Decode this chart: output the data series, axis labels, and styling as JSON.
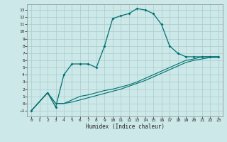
{
  "xlabel": "Humidex (Indice chaleur)",
  "bg_color": "#cce8e8",
  "line_color": "#007070",
  "grid_color": "#aacccc",
  "xlim": [
    -0.5,
    23.5
  ],
  "ylim": [
    -1.8,
    13.8
  ],
  "xticks": [
    0,
    1,
    2,
    3,
    4,
    5,
    6,
    7,
    8,
    9,
    10,
    11,
    12,
    13,
    14,
    15,
    16,
    17,
    18,
    19,
    20,
    21,
    22,
    23
  ],
  "yticks": [
    -1,
    0,
    1,
    2,
    3,
    4,
    5,
    6,
    7,
    8,
    9,
    10,
    11,
    12,
    13
  ],
  "curve1_x": [
    0,
    2,
    3,
    4,
    5,
    6,
    7,
    8,
    9,
    10,
    11,
    12,
    13,
    14,
    15,
    16,
    17,
    18,
    19,
    20,
    21,
    22,
    23
  ],
  "curve1_y": [
    -1,
    1.5,
    -0.5,
    4,
    5.5,
    5.5,
    5.5,
    5.0,
    8.0,
    11.8,
    12.2,
    12.5,
    13.2,
    13.0,
    12.5,
    11.0,
    8.0,
    7.0,
    6.5,
    6.5,
    6.5,
    6.5,
    6.5
  ],
  "curve2_x": [
    0,
    2,
    3,
    4,
    5,
    6,
    7,
    8,
    9,
    10,
    11,
    12,
    13,
    14,
    15,
    16,
    17,
    18,
    19,
    20,
    21,
    22,
    23
  ],
  "curve2_y": [
    -1,
    1.5,
    0.0,
    0.0,
    0.5,
    1.0,
    1.2,
    1.5,
    1.8,
    2.0,
    2.3,
    2.6,
    3.0,
    3.5,
    4.0,
    4.5,
    5.0,
    5.5,
    6.0,
    6.2,
    6.5,
    6.5,
    6.5
  ],
  "curve3_x": [
    0,
    2,
    3,
    4,
    5,
    6,
    7,
    8,
    9,
    10,
    11,
    12,
    13,
    14,
    15,
    16,
    17,
    18,
    19,
    20,
    21,
    22,
    23
  ],
  "curve3_y": [
    -1,
    1.5,
    0.0,
    0.0,
    0.2,
    0.5,
    0.8,
    1.1,
    1.4,
    1.7,
    2.0,
    2.4,
    2.8,
    3.2,
    3.7,
    4.2,
    4.7,
    5.2,
    5.7,
    6.0,
    6.2,
    6.4,
    6.4
  ]
}
